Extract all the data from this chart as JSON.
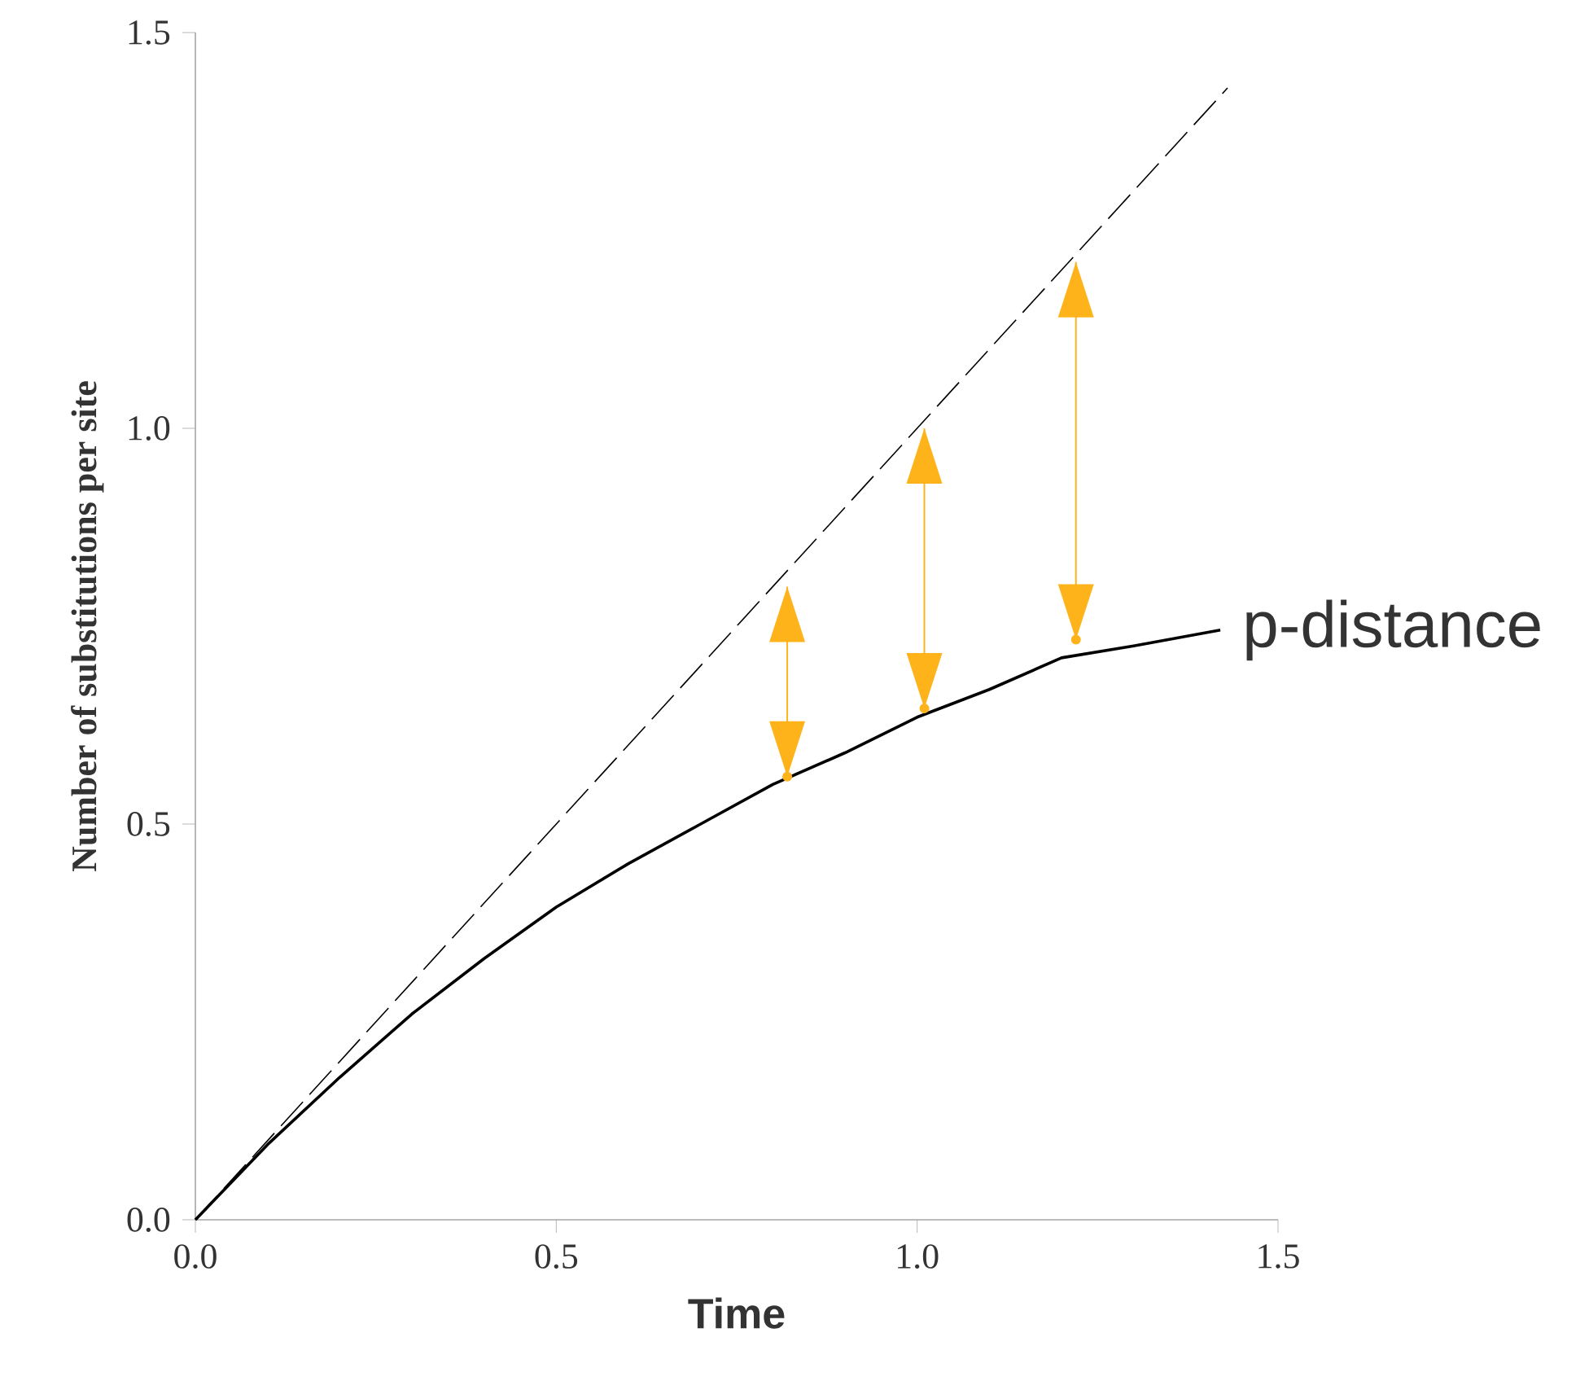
{
  "chart_data": {
    "type": "line",
    "xlabel": "Time",
    "ylabel": "Number of substitutions per site",
    "xlim": [
      0,
      1.5
    ],
    "ylim": [
      0,
      1.5
    ],
    "xticks": [
      {
        "value": 0,
        "label": "0.0"
      },
      {
        "value": 0.5,
        "label": "0.5"
      },
      {
        "value": 1,
        "label": "1.0"
      },
      {
        "value": 1.5,
        "label": "1.5"
      }
    ],
    "yticks": [
      {
        "value": 0,
        "label": "0.0"
      },
      {
        "value": 0.5,
        "label": "0.5"
      },
      {
        "value": 1,
        "label": "1.0"
      },
      {
        "value": 1.5,
        "label": "1.5"
      }
    ],
    "series": [
      {
        "name": "p-distance",
        "color": "#000000",
        "line_style": "solid",
        "x": [
          0,
          0.1,
          0.2,
          0.3,
          0.4,
          0.5,
          0.6,
          0.7,
          0.8,
          0.9,
          1.0,
          1.1,
          1.2,
          1.3,
          1.42
        ],
        "values": [
          0,
          0.095,
          0.18,
          0.26,
          0.33,
          0.395,
          0.45,
          0.5,
          0.55,
          0.59,
          0.635,
          0.67,
          0.71,
          0.725,
          0.745
        ]
      },
      {
        "color": "#000000",
        "line_style": "dashed",
        "x": [
          0,
          1.43
        ],
        "values": [
          0,
          1.43
        ]
      },
      {
        "type": "scatter",
        "marker": "circle",
        "color": "#ffb31a",
        "x": [
          0.82,
          1.01,
          1.22
        ],
        "values": [
          0.56,
          0.646,
          0.733
        ],
        "errors": [
          [
            0.56,
            0.8
          ],
          [
            0.646,
            1.0
          ],
          [
            0.733,
            1.21
          ]
        ]
      }
    ]
  }
}
